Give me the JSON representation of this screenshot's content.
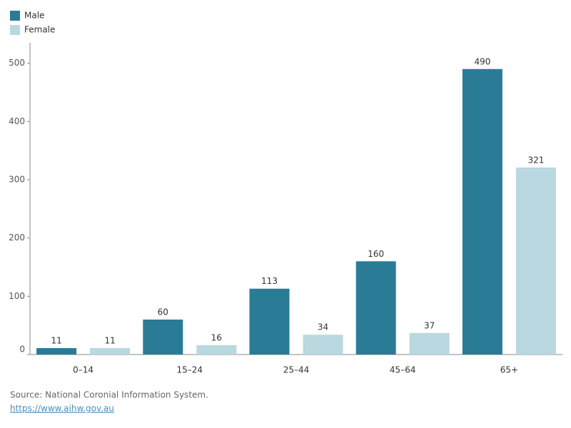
{
  "chart_data": {
    "type": "bar",
    "categories": [
      "0–14",
      "15–24",
      "25–44",
      "45–64",
      "65+"
    ],
    "series": [
      {
        "name": "Male",
        "color": "#2a7b96",
        "values": [
          11,
          60,
          113,
          160,
          490
        ]
      },
      {
        "name": "Female",
        "color": "#b9d8e0",
        "values": [
          11,
          16,
          34,
          37,
          321
        ]
      }
    ],
    "ylim": [
      0,
      535
    ],
    "yticks": [
      0,
      100,
      200,
      300,
      400,
      500
    ],
    "grid": false,
    "source": "Source: National Coronial Information System.",
    "link": "https://www.aihw.gov.au"
  }
}
